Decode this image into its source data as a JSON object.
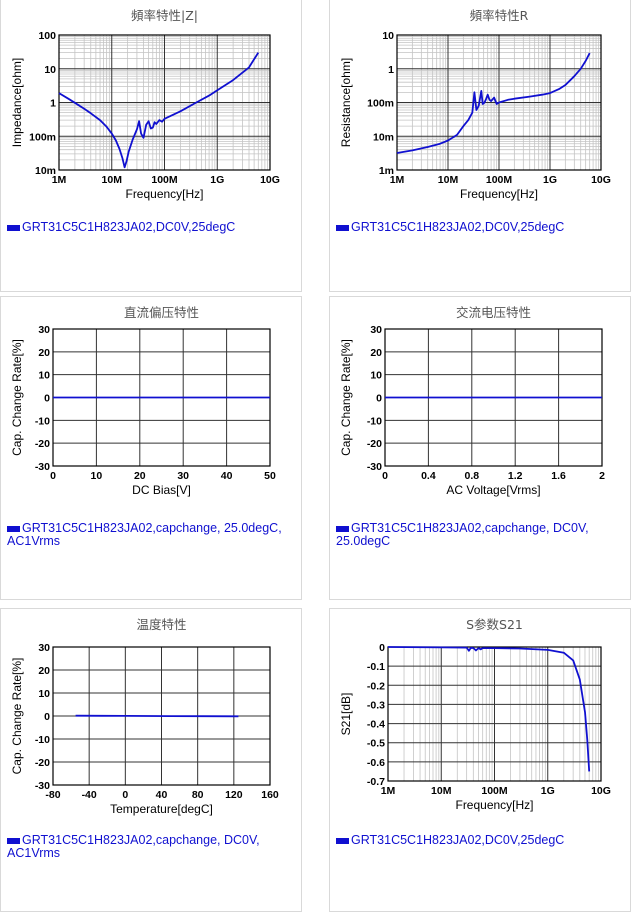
{
  "colors": {
    "series": "#1010d0",
    "grid_major": "#333333",
    "grid_minor": "#c4c4c4"
  },
  "chart_data": [
    {
      "id": "impedance",
      "type": "line",
      "title": "頻率特性|Z|",
      "xlabel": "Frequency[Hz]",
      "ylabel": "Impedance[ohm]",
      "xscale": "log",
      "yscale": "log",
      "xlim": [
        1000000,
        10000000000
      ],
      "ylim": [
        0.01,
        100
      ],
      "xticks": [
        {
          "v": 1000000,
          "label": "1M"
        },
        {
          "v": 10000000,
          "label": "10M"
        },
        {
          "v": 100000000,
          "label": "100M"
        },
        {
          "v": 1000000000,
          "label": "1G"
        },
        {
          "v": 10000000000,
          "label": "10G"
        }
      ],
      "yticks": [
        {
          "v": 0.01,
          "label": "10m"
        },
        {
          "v": 0.1,
          "label": "100m"
        },
        {
          "v": 1,
          "label": "1"
        },
        {
          "v": 10,
          "label": "10"
        },
        {
          "v": 100,
          "label": "100"
        }
      ],
      "grid": true,
      "legend": "GRT31C5C1H823JA02,DC0V,25degC",
      "series": [
        {
          "x": [
            1000000,
            1500000,
            2000000,
            3000000,
            4000000,
            6000000,
            8000000,
            10000000,
            12000000,
            14000000,
            16000000,
            17500000,
            19000000,
            21000000,
            25000000,
            30000000,
            33000000,
            36000000,
            40000000,
            45000000,
            50000000,
            55000000,
            60000000,
            65000000,
            70000000,
            80000000,
            90000000,
            100000000,
            200000000,
            400000000,
            700000000,
            1000000000,
            2000000000,
            4000000000,
            6000000000
          ],
          "y": [
            1.9,
            1.3,
            0.98,
            0.65,
            0.48,
            0.3,
            0.19,
            0.12,
            0.075,
            0.042,
            0.022,
            0.012,
            0.018,
            0.035,
            0.08,
            0.16,
            0.28,
            0.12,
            0.09,
            0.22,
            0.28,
            0.17,
            0.18,
            0.26,
            0.23,
            0.3,
            0.27,
            0.33,
            0.55,
            1.0,
            1.6,
            2.3,
            4.6,
            11,
            30
          ]
        }
      ]
    },
    {
      "id": "resistance",
      "type": "line",
      "title": "頻率特性R",
      "xlabel": "Frequency[Hz]",
      "ylabel": "Resistance[ohm]",
      "xscale": "log",
      "yscale": "log",
      "xlim": [
        1000000,
        10000000000
      ],
      "ylim": [
        0.001,
        10
      ],
      "xticks": [
        {
          "v": 1000000,
          "label": "1M"
        },
        {
          "v": 10000000,
          "label": "10M"
        },
        {
          "v": 100000000,
          "label": "100M"
        },
        {
          "v": 1000000000,
          "label": "1G"
        },
        {
          "v": 10000000000,
          "label": "10G"
        }
      ],
      "yticks": [
        {
          "v": 0.001,
          "label": "1m"
        },
        {
          "v": 0.01,
          "label": "10m"
        },
        {
          "v": 0.1,
          "label": "100m"
        },
        {
          "v": 1,
          "label": "1"
        },
        {
          "v": 10,
          "label": "10"
        }
      ],
      "grid": true,
      "legend": "GRT31C5C1H823JA02,DC0V,25degC",
      "series": [
        {
          "x": [
            1000000,
            2000000,
            4000000,
            7000000,
            10000000,
            15000000,
            20000000,
            25000000,
            30000000,
            33000000,
            36000000,
            40000000,
            45000000,
            48000000,
            52000000,
            56000000,
            60000000,
            65000000,
            70000000,
            80000000,
            90000000,
            100000000,
            150000000,
            200000000,
            400000000,
            700000000,
            1000000000,
            1500000000,
            2000000000,
            3000000000,
            4000000000,
            5000000000,
            6000000000
          ],
          "y": [
            0.0032,
            0.0038,
            0.0048,
            0.006,
            0.0075,
            0.011,
            0.02,
            0.03,
            0.05,
            0.2,
            0.06,
            0.08,
            0.22,
            0.09,
            0.1,
            0.13,
            0.17,
            0.12,
            0.11,
            0.14,
            0.09,
            0.1,
            0.12,
            0.13,
            0.15,
            0.17,
            0.19,
            0.25,
            0.33,
            0.6,
            1.0,
            1.7,
            2.9
          ]
        }
      ]
    },
    {
      "id": "dcbias",
      "type": "line",
      "title": "直流偏压特性",
      "xlabel": "DC Bias[V]",
      "ylabel": "Cap. Change Rate[%]",
      "xscale": "linear",
      "yscale": "linear",
      "xlim": [
        0,
        50
      ],
      "ylim": [
        -30,
        30
      ],
      "xticks": [
        {
          "v": 0,
          "label": "0"
        },
        {
          "v": 10,
          "label": "10"
        },
        {
          "v": 20,
          "label": "20"
        },
        {
          "v": 30,
          "label": "30"
        },
        {
          "v": 40,
          "label": "40"
        },
        {
          "v": 50,
          "label": "50"
        }
      ],
      "yticks": [
        {
          "v": -30,
          "label": "-30"
        },
        {
          "v": -20,
          "label": "-20"
        },
        {
          "v": -10,
          "label": "-10"
        },
        {
          "v": 0,
          "label": "0"
        },
        {
          "v": 10,
          "label": "10"
        },
        {
          "v": 20,
          "label": "20"
        },
        {
          "v": 30,
          "label": "30"
        }
      ],
      "grid": true,
      "legend": "GRT31C5C1H823JA02,capchange, 25.0degC, AC1Vrms",
      "series": [
        {
          "x": [
            0,
            50
          ],
          "y": [
            0,
            0
          ]
        }
      ]
    },
    {
      "id": "acvoltage",
      "type": "line",
      "title": "交流电压特性",
      "xlabel": "AC Voltage[Vrms]",
      "ylabel": "Cap. Change Rate[%]",
      "xscale": "linear",
      "yscale": "linear",
      "xlim": [
        0,
        2
      ],
      "ylim": [
        -30,
        30
      ],
      "xticks": [
        {
          "v": 0,
          "label": "0"
        },
        {
          "v": 0.4,
          "label": "0.4"
        },
        {
          "v": 0.8,
          "label": "0.8"
        },
        {
          "v": 1.2,
          "label": "1.2"
        },
        {
          "v": 1.6,
          "label": "1.6"
        },
        {
          "v": 2,
          "label": "2"
        }
      ],
      "yticks": [
        {
          "v": -30,
          "label": "-30"
        },
        {
          "v": -20,
          "label": "-20"
        },
        {
          "v": -10,
          "label": "-10"
        },
        {
          "v": 0,
          "label": "0"
        },
        {
          "v": 10,
          "label": "10"
        },
        {
          "v": 20,
          "label": "20"
        },
        {
          "v": 30,
          "label": "30"
        }
      ],
      "grid": true,
      "legend": "GRT31C5C1H823JA02,capchange, DC0V, 25.0degC",
      "series": [
        {
          "x": [
            0,
            2
          ],
          "y": [
            0,
            0
          ]
        }
      ]
    },
    {
      "id": "temperature",
      "type": "line",
      "title": "温度特性",
      "xlabel": "Temperature[degC]",
      "ylabel": "Cap. Change Rate[%]",
      "xscale": "linear",
      "yscale": "linear",
      "xlim": [
        -80,
        160
      ],
      "ylim": [
        -30,
        30
      ],
      "xticks": [
        {
          "v": -80,
          "label": "-80"
        },
        {
          "v": -40,
          "label": "-40"
        },
        {
          "v": 0,
          "label": "0"
        },
        {
          "v": 40,
          "label": "40"
        },
        {
          "v": 80,
          "label": "80"
        },
        {
          "v": 120,
          "label": "120"
        },
        {
          "v": 160,
          "label": "160"
        }
      ],
      "yticks": [
        {
          "v": -30,
          "label": "-30"
        },
        {
          "v": -20,
          "label": "-20"
        },
        {
          "v": -10,
          "label": "-10"
        },
        {
          "v": 0,
          "label": "0"
        },
        {
          "v": 10,
          "label": "10"
        },
        {
          "v": 20,
          "label": "20"
        },
        {
          "v": 30,
          "label": "30"
        }
      ],
      "grid": true,
      "legend": "GRT31C5C1H823JA02,capchange, DC0V, AC1Vrms",
      "series": [
        {
          "x": [
            -55,
            -25,
            0,
            25,
            50,
            85,
            125
          ],
          "y": [
            0.15,
            0.1,
            0.05,
            0,
            -0.05,
            -0.1,
            -0.15
          ]
        }
      ]
    },
    {
      "id": "s21",
      "type": "line",
      "title": "S参数S21",
      "xlabel": "Frequency[Hz]",
      "ylabel": "S21[dB]",
      "xscale": "log",
      "yscale": "linear",
      "xlim": [
        1000000,
        10000000000
      ],
      "ylim": [
        -0.7,
        0
      ],
      "xticks": [
        {
          "v": 1000000,
          "label": "1M"
        },
        {
          "v": 10000000,
          "label": "10M"
        },
        {
          "v": 100000000,
          "label": "100M"
        },
        {
          "v": 1000000000,
          "label": "1G"
        },
        {
          "v": 10000000000,
          "label": "10G"
        }
      ],
      "yticks": [
        {
          "v": 0,
          "label": "0"
        },
        {
          "v": -0.1,
          "label": "-0.1"
        },
        {
          "v": -0.2,
          "label": "-0.2"
        },
        {
          "v": -0.3,
          "label": "-0.3"
        },
        {
          "v": -0.4,
          "label": "-0.4"
        },
        {
          "v": -0.5,
          "label": "-0.5"
        },
        {
          "v": -0.6,
          "label": "-0.6"
        },
        {
          "v": -0.7,
          "label": "-0.7"
        }
      ],
      "grid": true,
      "legend": "GRT31C5C1H823JA02,DC0V,25degC",
      "series": [
        {
          "x": [
            1000000,
            10000000,
            30000000,
            33000000,
            36000000,
            40000000,
            45000000,
            50000000,
            55000000,
            60000000,
            100000000,
            300000000,
            1000000000,
            2000000000,
            3000000000,
            4000000000,
            5000000000,
            5500000000,
            6000000000
          ],
          "y": [
            0,
            -0.002,
            -0.003,
            -0.02,
            -0.004,
            -0.005,
            -0.018,
            -0.006,
            -0.012,
            -0.006,
            -0.006,
            -0.008,
            -0.015,
            -0.03,
            -0.07,
            -0.17,
            -0.34,
            -0.48,
            -0.65
          ]
        }
      ]
    }
  ]
}
